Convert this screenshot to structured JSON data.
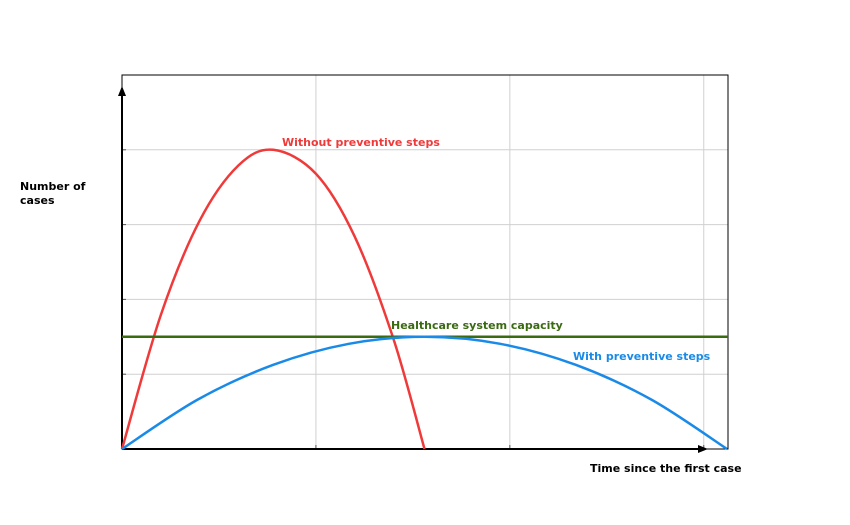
{
  "chart_data": {
    "type": "line",
    "y_label": "Number of cases",
    "x_label": "Time since the first case",
    "xlim": [
      0,
      3.125
    ],
    "ylim": [
      0,
      5
    ],
    "xticks": [
      1,
      2,
      3
    ],
    "yticks": [
      1,
      2,
      3,
      4
    ],
    "grid": true,
    "series": [
      {
        "name": "Without preventive steps",
        "color": "#f03a3a",
        "x": [
          0,
          0.2,
          0.4,
          0.6,
          0.78,
          1.0,
          1.2,
          1.4,
          1.56
        ],
        "values": [
          0,
          1.79,
          3.05,
          3.79,
          4,
          3.68,
          2.84,
          1.47,
          0
        ]
      },
      {
        "name": "Healthcare system capacity",
        "color": "#3a6a12",
        "x": [
          0,
          3.125
        ],
        "values": [
          1.5,
          1.5
        ]
      },
      {
        "name": "With preventive steps",
        "color": "#1a8ae8",
        "x": [
          0,
          0.39,
          0.78,
          1.17,
          1.56,
          1.95,
          2.34,
          2.73,
          3.12
        ],
        "values": [
          0,
          0.66,
          1.125,
          1.406,
          1.5,
          1.406,
          1.125,
          0.66,
          0
        ]
      }
    ]
  }
}
